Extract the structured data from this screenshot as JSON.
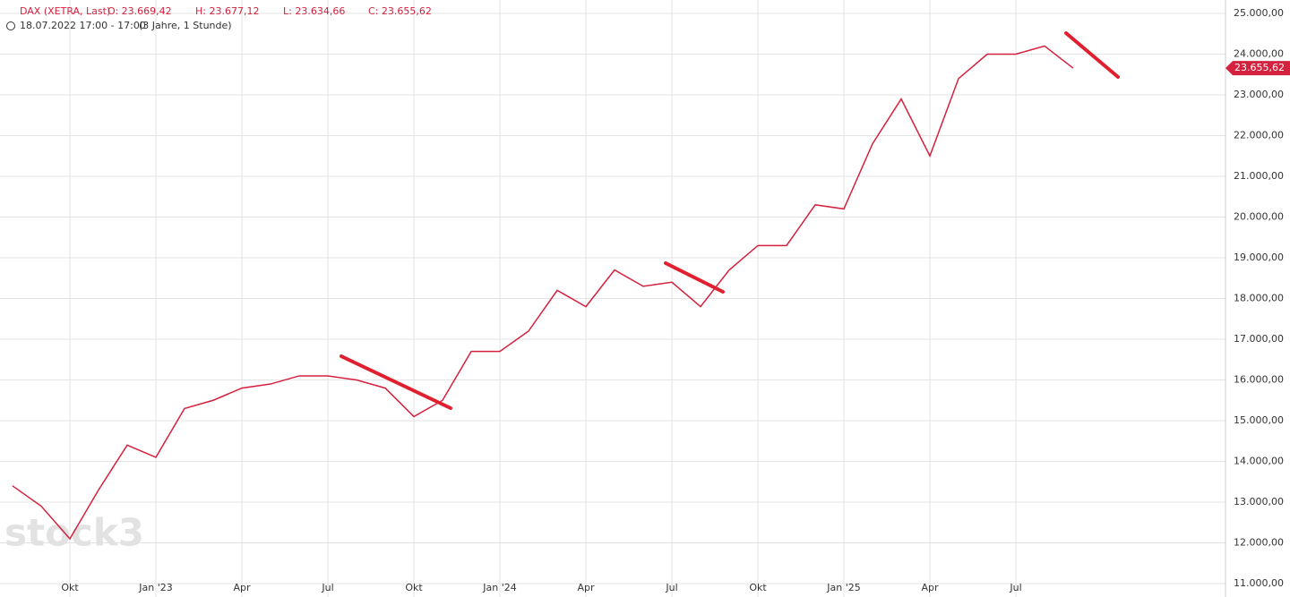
{
  "chart_data": {
    "type": "line",
    "header": {
      "instrument": "DAX (XETRA, Last)",
      "ohlc": [
        "O: 23.669,42",
        "H: 23.677,12",
        "L: 23.634,66",
        "C: 23.655,62"
      ],
      "range": "18.07.2022 17:00 - 17:00",
      "period": "(3 Jahre, 1 Stunde)"
    },
    "watermark": "stock3",
    "categories": [
      null,
      null,
      "Okt",
      null,
      null,
      "Jan '23",
      null,
      null,
      "Apr",
      null,
      null,
      "Jul",
      null,
      null,
      "Okt",
      null,
      null,
      "Jan '24",
      null,
      null,
      "Apr",
      null,
      null,
      "Jul",
      null,
      null,
      "Okt",
      null,
      null,
      "Jan '25",
      null,
      null,
      "Apr",
      null,
      null,
      "Jul",
      null,
      null
    ],
    "series": [
      {
        "name": "DAX",
        "color": "#d4213d",
        "values": [
          13400,
          12900,
          12100,
          13300,
          14400,
          14100,
          15300,
          15500,
          15800,
          15900,
          16100,
          16100,
          16000,
          15800,
          15100,
          15500,
          16700,
          16700,
          17200,
          18200,
          17800,
          18700,
          18300,
          18400,
          17800,
          18700,
          19300,
          19300,
          20300,
          20200,
          21800,
          22900,
          21500,
          23400,
          24000,
          24000,
          24200,
          23655.62
        ]
      }
    ],
    "last_price": {
      "value": 23655.62,
      "label": "23.655,62"
    },
    "ylim": [
      11000,
      25000
    ],
    "yticks": [
      {
        "value": 11000,
        "label": "11.000,00"
      },
      {
        "value": 12000,
        "label": "12.000,00"
      },
      {
        "value": 13000,
        "label": "13.000,00"
      },
      {
        "value": 14000,
        "label": "14.000,00"
      },
      {
        "value": 15000,
        "label": "15.000,00"
      },
      {
        "value": 16000,
        "label": "16.000,00"
      },
      {
        "value": 17000,
        "label": "17.000,00"
      },
      {
        "value": 18000,
        "label": "18.000,00"
      },
      {
        "value": 19000,
        "label": "19.000,00"
      },
      {
        "value": 20000,
        "label": "20.000,00"
      },
      {
        "value": 21000,
        "label": "21.000,00"
      },
      {
        "value": 22000,
        "label": "22.000,00"
      },
      {
        "value": 23000,
        "label": "23.000,00"
      },
      {
        "value": 24000,
        "label": "24.000,00"
      },
      {
        "value": 25000,
        "label": "25.000,00"
      }
    ],
    "grid": true
  }
}
